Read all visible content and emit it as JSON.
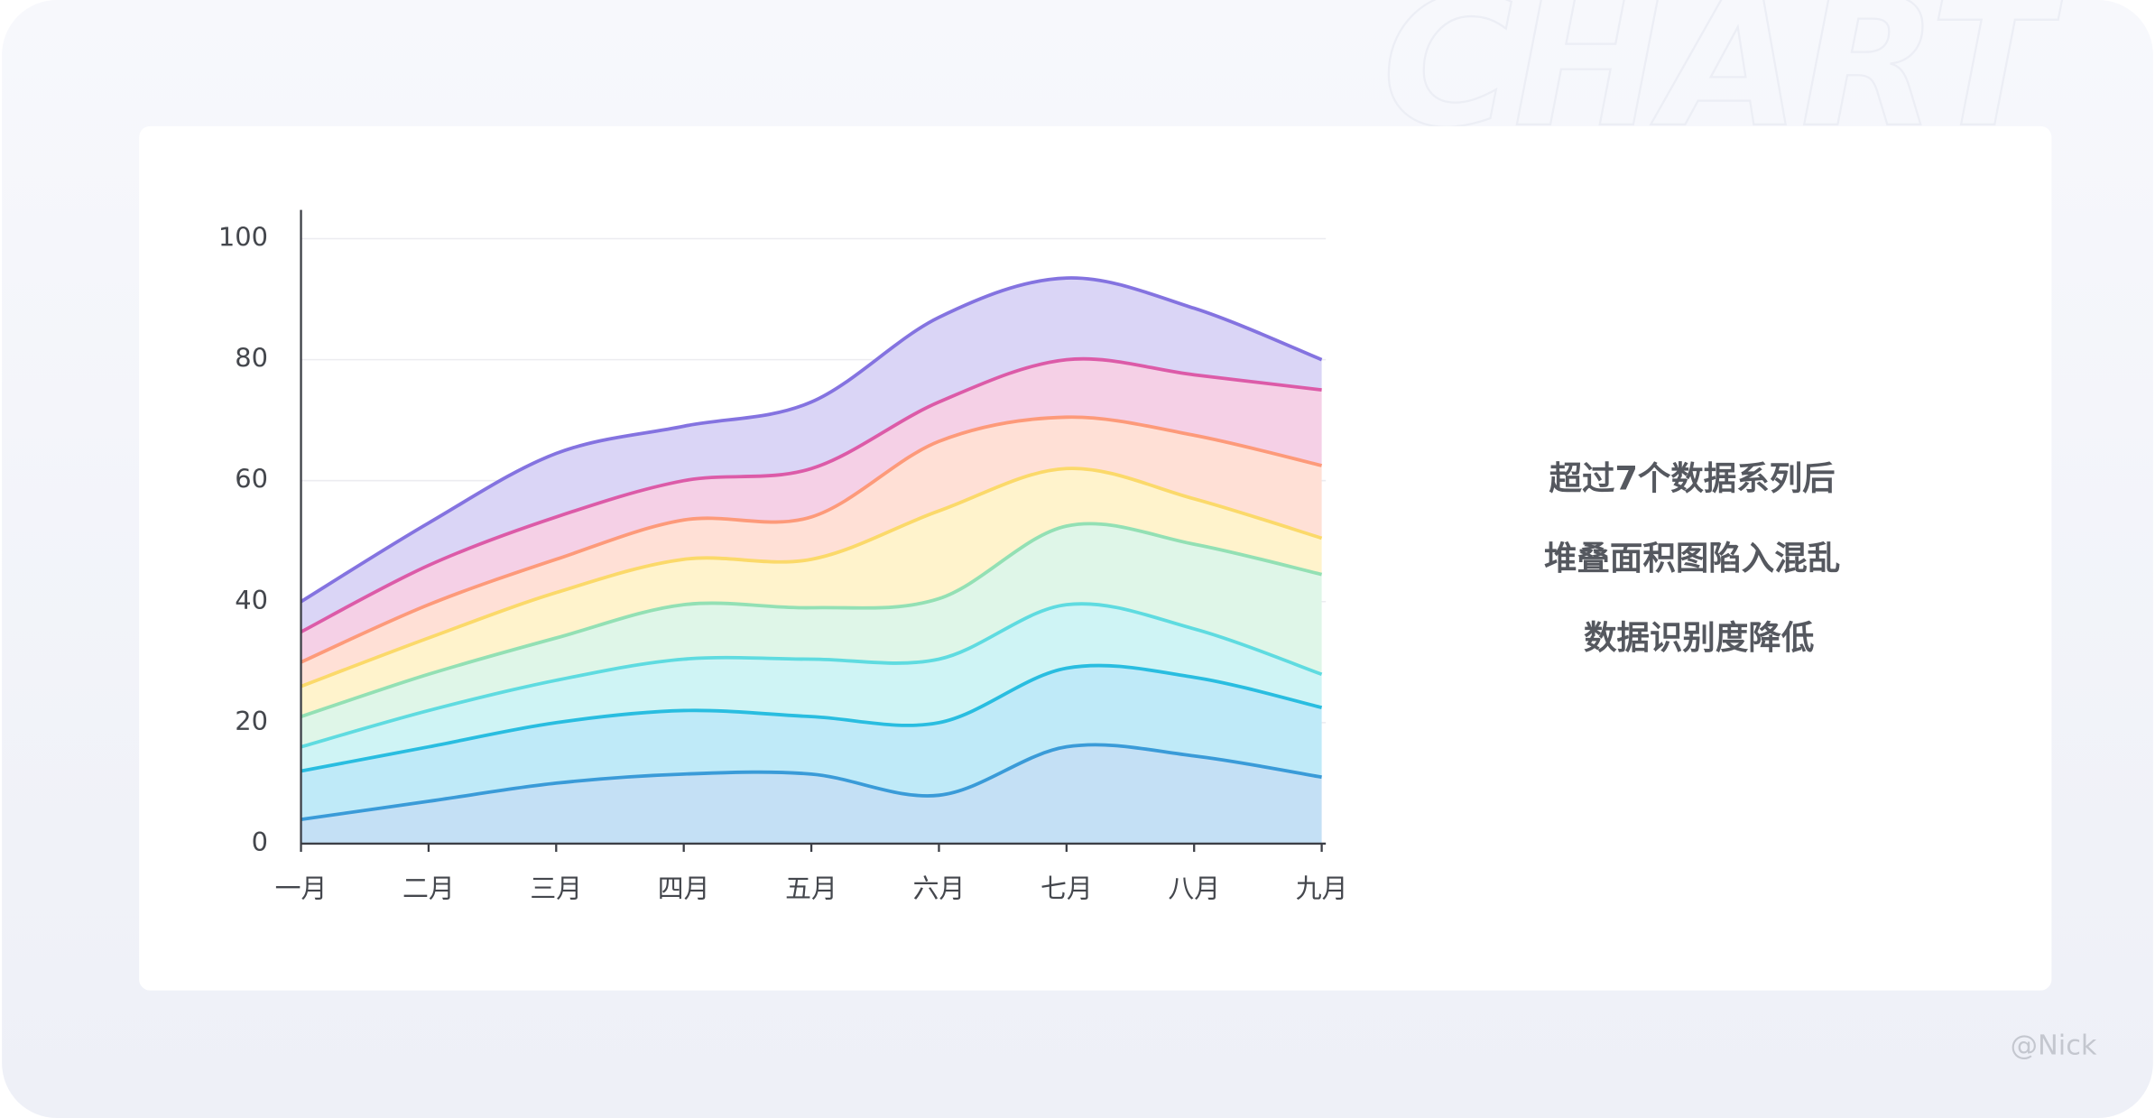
{
  "watermark": "CHART",
  "side_text": [
    "超过7个数据系列后",
    "堆叠面积图陷入混乱",
    "数据识别度降低"
  ],
  "credit": "@Nick",
  "chart_data": {
    "type": "stacked-area",
    "categories": [
      "一月",
      "二月",
      "三月",
      "四月",
      "五月",
      "六月",
      "七月",
      "八月",
      "九月"
    ],
    "ylim": [
      0,
      100
    ],
    "yticks": [
      0,
      20,
      40,
      60,
      80,
      100
    ],
    "grid": true,
    "series": [
      {
        "color": "#3a9bd8",
        "fill": "#c4e0f5",
        "values": [
          4,
          7,
          10,
          11.5,
          11.5,
          8,
          16,
          14.5,
          11
        ]
      },
      {
        "color": "#29bde0",
        "fill": "#bfeaf8",
        "values": [
          8,
          9,
          10,
          10.5,
          9.5,
          12,
          13,
          13,
          11.5
        ]
      },
      {
        "color": "#5fdbe0",
        "fill": "#cff4f5",
        "values": [
          4,
          6,
          7,
          8.5,
          9.5,
          10.5,
          10.5,
          8,
          5.5
        ]
      },
      {
        "color": "#93e0b4",
        "fill": "#dff6e8",
        "values": [
          5,
          6,
          7,
          9,
          8.5,
          10,
          13,
          14,
          16.5
        ]
      },
      {
        "color": "#fbd96a",
        "fill": "#fff3cc",
        "values": [
          5,
          6,
          7.5,
          7.5,
          8,
          14.5,
          9.5,
          7.5,
          6
        ]
      },
      {
        "color": "#fd9a7a",
        "fill": "#ffe0d6",
        "values": [
          4,
          5.5,
          5.5,
          6.5,
          7,
          11.5,
          8.5,
          10.5,
          12
        ]
      },
      {
        "color": "#dc5ba8",
        "fill": "#f5d0e6",
        "values": [
          5,
          6.5,
          7,
          6.5,
          8,
          6.5,
          9.5,
          10,
          12.5
        ]
      },
      {
        "color": "#8473e0",
        "fill": "#dad5f6",
        "values": [
          5,
          7,
          10.5,
          9,
          11,
          14,
          13.5,
          11,
          5
        ]
      }
    ]
  }
}
